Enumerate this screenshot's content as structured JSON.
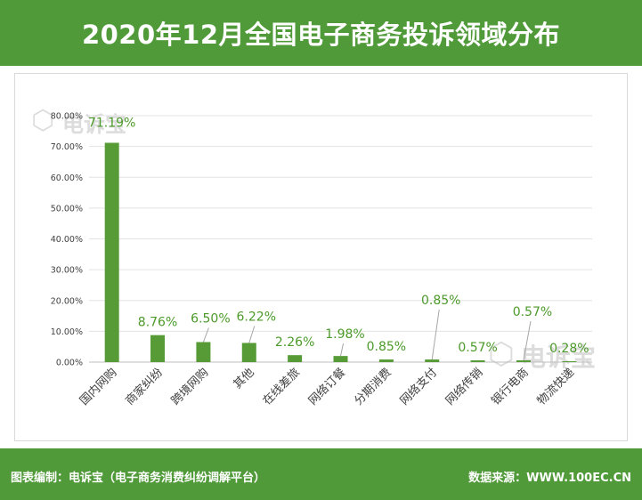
{
  "header": {
    "title": "2020年12月全国电子商务投诉领域分布"
  },
  "footer": {
    "left": "图表编制：电诉宝（电子商务消费纠纷调解平台）",
    "right": "数据来源：WWW.100EC.CN"
  },
  "watermark": {
    "text": "电诉宝"
  },
  "colors": {
    "brand": "#519a3a",
    "bar": "#569b36",
    "label": "#4c9a2a"
  },
  "chart_data": {
    "type": "bar",
    "categories": [
      "国内网购",
      "商家纠纷",
      "跨境网购",
      "其他",
      "在线差旅",
      "网络订餐",
      "分期消费",
      "网络支付",
      "网络传销",
      "银行电商",
      "物流快递"
    ],
    "values": [
      71.19,
      8.76,
      6.5,
      6.22,
      2.26,
      1.98,
      0.85,
      0.85,
      0.57,
      0.57,
      0.28
    ],
    "data_labels": [
      "71.19%",
      "8.76%",
      "6.50%",
      "6.22%",
      "2.26%",
      "1.98%",
      "0.85%",
      "0.85%",
      "0.57%",
      "0.57%",
      "0.28%"
    ],
    "yticks": [
      "0.00%",
      "10.00%",
      "20.00%",
      "30.00%",
      "40.00%",
      "50.00%",
      "60.00%",
      "70.00%",
      "80.00%"
    ],
    "ylim": [
      0,
      80
    ],
    "grid": true,
    "legend": "none"
  }
}
